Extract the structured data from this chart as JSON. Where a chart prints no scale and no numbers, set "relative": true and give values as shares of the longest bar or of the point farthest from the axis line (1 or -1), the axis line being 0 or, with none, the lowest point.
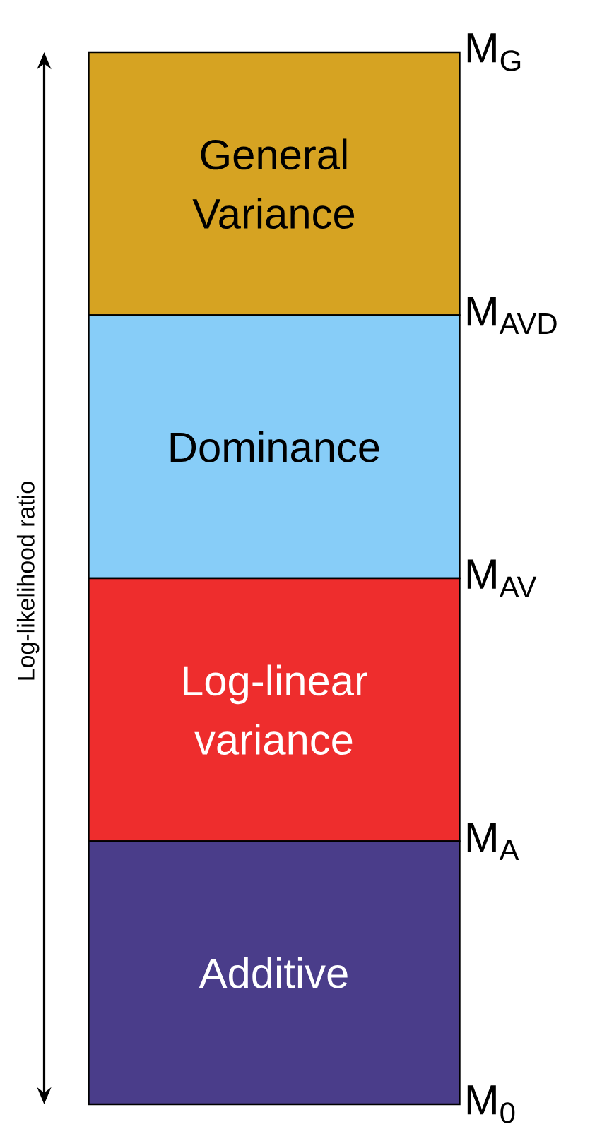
{
  "chart_data": {
    "type": "bar",
    "stacked": true,
    "relative": true,
    "ylabel": "Log-likelihood ratio",
    "categories": [
      null
    ],
    "series": [
      {
        "name": "Additive",
        "color": "#4a3d8a",
        "values": [
          0.25
        ]
      },
      {
        "name": "Log-linear variance",
        "color": "#ee2d2d",
        "values": [
          0.25
        ]
      },
      {
        "name": "Dominance",
        "color": "#87cdf8",
        "values": [
          0.25
        ]
      },
      {
        "name": "General Variance",
        "color": "#d6a322",
        "values": [
          0.25
        ]
      }
    ],
    "annotations": [
      "M$_{0}$",
      "M$_{A}$",
      "M$_{AV}$",
      "M$_{AVD}$",
      "M$_{G}$"
    ]
  }
}
